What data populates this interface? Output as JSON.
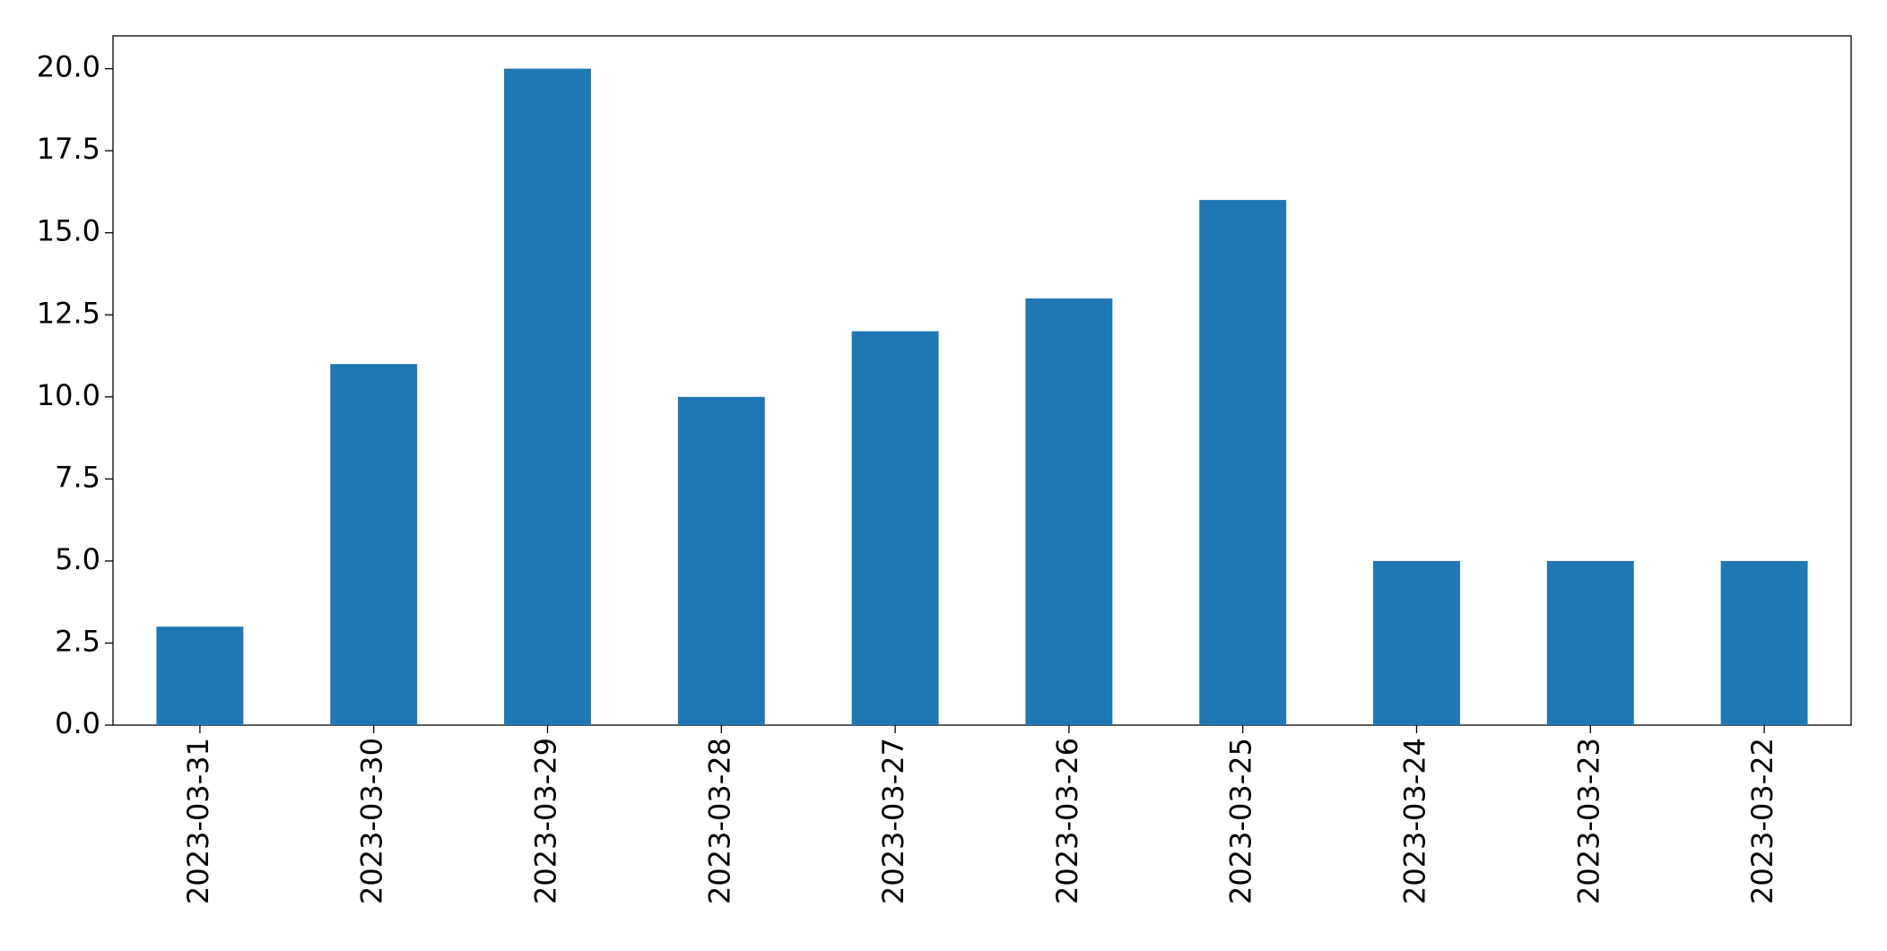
{
  "chart_data": {
    "type": "bar",
    "categories": [
      "2023-03-31",
      "2023-03-30",
      "2023-03-29",
      "2023-03-28",
      "2023-03-27",
      "2023-03-26",
      "2023-03-25",
      "2023-03-24",
      "2023-03-23",
      "2023-03-22"
    ],
    "values": [
      3,
      11,
      20,
      10,
      12,
      13,
      16,
      5,
      5,
      5
    ],
    "color": "#1f77b4",
    "ylim": [
      0,
      21
    ],
    "yticks": [
      {
        "value": 0,
        "label": "0.0"
      },
      2.5,
      {
        "value": 5,
        "label": "5.0"
      },
      7.5,
      {
        "value": 10,
        "label": "10.0"
      },
      12.5,
      {
        "value": 15,
        "label": "15.0"
      },
      17.5,
      {
        "value": 20,
        "label": "20.0"
      }
    ],
    "grid": false
  }
}
